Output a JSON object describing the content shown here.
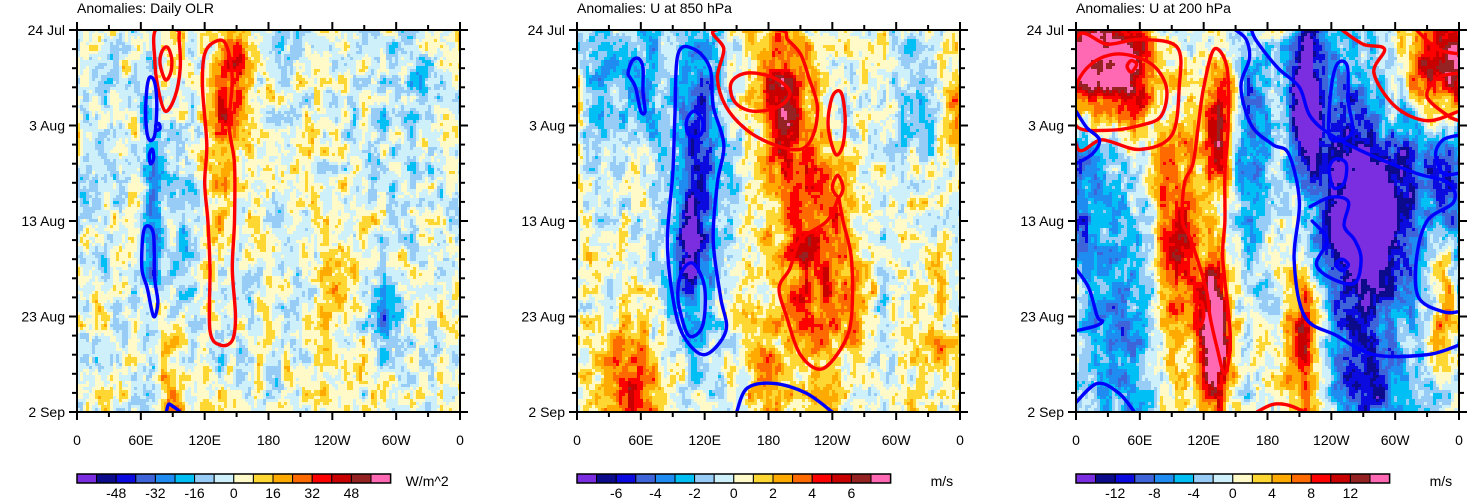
{
  "figure": {
    "description": "Hovmoller diagrams (longitude vs time) of daily anomalies with overlaid composite contours"
  },
  "chart_data": [
    {
      "type": "heatmap",
      "title": "Anomalies: Daily OLR",
      "xlabel": "",
      "ylabel": "",
      "x_ticks": [
        "0",
        "60E",
        "120E",
        "180",
        "120W",
        "60W",
        "0"
      ],
      "x_range_deg": [
        0,
        360
      ],
      "y_ticks": [
        "24 Jul",
        "3 Aug",
        "13 Aug",
        "23 Aug",
        "2 Sep"
      ],
      "y_range_days": [
        0,
        40
      ],
      "y_minor_tick_days": 2,
      "colorbar": {
        "units": "W/m^2",
        "levels": [
          -56,
          -48,
          -40,
          -32,
          -24,
          -16,
          -8,
          0,
          8,
          16,
          24,
          32,
          40,
          48,
          56
        ],
        "labels": [
          "-48",
          "-32",
          "-16",
          "0",
          "16",
          "32",
          "48"
        ],
        "label_values": [
          -48,
          -32,
          -16,
          0,
          16,
          32,
          48
        ],
        "colors": [
          "#7b2ee0",
          "#0b0b8c",
          "#0b0be0",
          "#3d65d9",
          "#1e8cf0",
          "#00bff5",
          "#96ccf5",
          "#cdf0fa",
          "#fffac8",
          "#ffd733",
          "#ffaa00",
          "#ff6a00",
          "#ff0000",
          "#c80000",
          "#962323",
          "#ff69b4"
        ]
      },
      "contours": [
        {
          "color": "#ff0000",
          "sign": "positive",
          "regions": [
            "~85E, 24 Jul–30 Jul (nested rings)",
            "~120–150E, 1 Aug–25 Aug elongated band"
          ]
        },
        {
          "color": "#0000ff",
          "sign": "negative",
          "regions": [
            "~70E, 6–10 Aug",
            "~70E, 13 Aug small",
            "~65–75E, 20–27 Aug",
            "~85–95E, 2 Sep edge"
          ]
        }
      ]
    },
    {
      "type": "heatmap",
      "title": "Anomalies: U at 850 hPa",
      "xlabel": "",
      "ylabel": "",
      "x_ticks": [
        "0",
        "60E",
        "120E",
        "180",
        "120W",
        "60W",
        "0"
      ],
      "x_range_deg": [
        0,
        360
      ],
      "y_ticks": [
        "24 Jul",
        "3 Aug",
        "13 Aug",
        "23 Aug",
        "2 Sep"
      ],
      "y_range_days": [
        0,
        40
      ],
      "y_minor_tick_days": 2,
      "colorbar": {
        "units": "m/s",
        "levels": [
          -7,
          -6,
          -5,
          -4,
          -3,
          -2,
          -1,
          0,
          1,
          2,
          3,
          4,
          5,
          6,
          7
        ],
        "labels": [
          "-6",
          "-4",
          "-2",
          "0",
          "2",
          "4",
          "6"
        ],
        "label_values": [
          -6,
          -4,
          -2,
          0,
          2,
          4,
          6
        ],
        "colors": [
          "#7b2ee0",
          "#0b0b8c",
          "#0b0be0",
          "#3d65d9",
          "#1e8cf0",
          "#00bff5",
          "#96ccf5",
          "#cdf0fa",
          "#fffac8",
          "#ffd733",
          "#ffaa00",
          "#ff6a00",
          "#ff0000",
          "#c80000",
          "#962323",
          "#ff69b4"
        ]
      },
      "contours": [
        {
          "color": "#ff0000",
          "sign": "positive",
          "regions": [
            "~135–230E, 24 Jul–1 Aug (nested)",
            "~230–245E, 5–11 Aug",
            "~180–290E, 12 Aug–26 Aug"
          ]
        },
        {
          "color": "#0000ff",
          "sign": "negative",
          "regions": [
            "~50–70E, 26–31 Jul",
            "~80–150E, 2 Aug–28 Aug (with inner cores ~118E 10 Aug, ~110E 23 Aug)",
            "~155–240E, 2 Sep edge"
          ]
        }
      ]
    },
    {
      "type": "heatmap",
      "title": "Anomalies: U at 200 hPa",
      "xlabel": "",
      "ylabel": "",
      "x_ticks": [
        "0",
        "60E",
        "120E",
        "180",
        "120W",
        "60W",
        "0"
      ],
      "x_range_deg": [
        0,
        360
      ],
      "y_ticks": [
        "24 Jul",
        "3 Aug",
        "13 Aug",
        "23 Aug",
        "2 Sep"
      ],
      "y_range_days": [
        0,
        40
      ],
      "y_minor_tick_days": 2,
      "colorbar": {
        "units": "m/s",
        "levels": [
          -14,
          -12,
          -10,
          -8,
          -6,
          -4,
          -2,
          0,
          2,
          4,
          6,
          8,
          10,
          12,
          14
        ],
        "labels": [
          "-12",
          "-8",
          "-4",
          "0",
          "4",
          "8",
          "12"
        ],
        "label_values": [
          -12,
          -8,
          -4,
          0,
          4,
          8,
          12
        ],
        "colors": [
          "#7b2ee0",
          "#0b0b8c",
          "#0b0be0",
          "#3d65d9",
          "#1e8cf0",
          "#00bff5",
          "#96ccf5",
          "#cdf0fa",
          "#fffac8",
          "#ffd733",
          "#ffaa00",
          "#ff6a00",
          "#ff0000",
          "#c80000",
          "#962323",
          "#ff69b4"
        ]
      },
      "contours": [
        {
          "color": "#ff0000",
          "sign": "positive",
          "regions": [
            "~0–95E, 24 Jul–1 Aug (nested, core ~52E 28 Jul)",
            "~100–140E, 3 Aug–27 Aug",
            "~250–360E, 24 Jul–31 Jul",
            "~170–215E, 2 Sep edge"
          ]
        },
        {
          "color": "#0000ff",
          "sign": "negative",
          "regions": [
            "~145–360E diagonal band from 24 Jul to 30 Aug",
            "~240–265E, 4–10 Aug",
            "~240–260E, 13–15 Aug",
            "~230–270E, 16–24 Aug",
            "~0–40E, 9 Aug edge",
            "~0–40E, 25–28 Aug edge"
          ]
        }
      ]
    }
  ]
}
